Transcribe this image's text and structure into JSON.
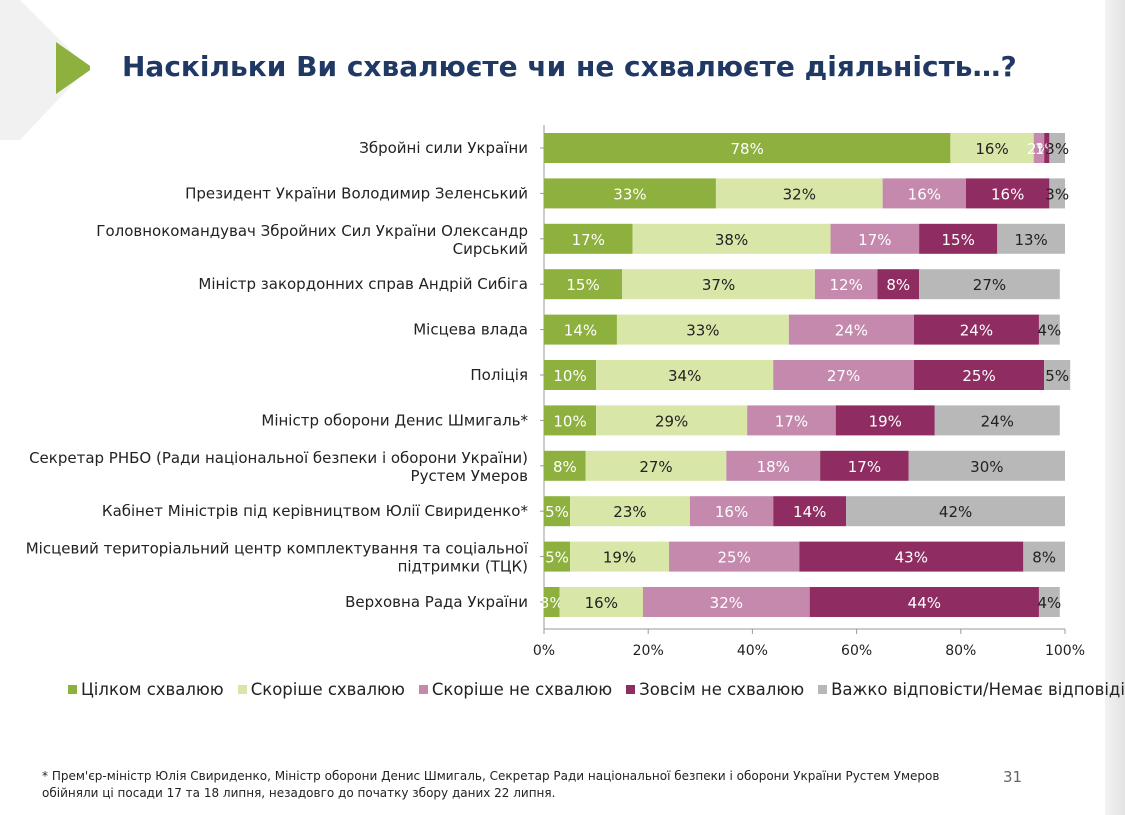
{
  "title": "Наскільки Ви схвалюєте чи не схвалюєте діяльність…?",
  "footnote": "* Прем'єр-міністр Юлія Свириденко, Міністр оборони Денис Шмигаль, Секретар Ради національної безпеки і оборони України Рустем Умеров обійняли ці посади 17 та 18 липня, незадовго до початку збору даних 22 липня.",
  "page_number": "31",
  "colors": {
    "accent_triangle": "#8db03e",
    "title": "#1f3864"
  },
  "chart_data": {
    "type": "bar",
    "orientation": "horizontal",
    "stacked": true,
    "xlim": [
      0,
      100
    ],
    "xticks": [
      "0%",
      "20%",
      "40%",
      "60%",
      "80%",
      "100%"
    ],
    "grid": false,
    "legend_position": "bottom",
    "categories": [
      [
        "Збройні сили України"
      ],
      [
        "Президент України Володимир Зеленський"
      ],
      [
        "Головнокомандувач Збройних Сил України Олександр",
        "Сирський"
      ],
      [
        "Міністр закордонних справ Андрій Сибіга"
      ],
      [
        "Місцева влада"
      ],
      [
        "Поліція"
      ],
      [
        "Міністр оборони Денис Шмигаль*"
      ],
      [
        "Секретар РНБО (Ради національної безпеки і оборони України)",
        "Рустем Умеров"
      ],
      [
        "Кабінет Міністрів під керівництвом Юлії Свириденко*"
      ],
      [
        "Місцевий територіальний центр комплектування та соціальної",
        "підтримки (ТЦК)"
      ],
      [
        "Верховна Рада України"
      ]
    ],
    "series": [
      {
        "name": "Цілком схвалюю",
        "color": "#8db03e",
        "label_color": "#ffffff",
        "values": [
          78,
          33,
          17,
          15,
          14,
          10,
          10,
          8,
          5,
          5,
          3
        ]
      },
      {
        "name": "Скоріше схвалюю",
        "color": "#d8e6a8",
        "label_color": "#222222",
        "values": [
          16,
          32,
          38,
          37,
          33,
          34,
          29,
          27,
          23,
          19,
          16
        ]
      },
      {
        "name": "Скоріше не схвалюю",
        "color": "#c489ad",
        "label_color": "#ffffff",
        "values": [
          2,
          16,
          17,
          12,
          24,
          27,
          17,
          18,
          16,
          25,
          32
        ]
      },
      {
        "name": "Зовсім не схвалюю",
        "color": "#8f2d62",
        "label_color": "#ffffff",
        "values": [
          1,
          16,
          15,
          8,
          24,
          25,
          19,
          17,
          14,
          43,
          44
        ]
      },
      {
        "name": "Важко відповісти/Немає відповіді",
        "color": "#b8b8b8",
        "label_color": "#222222",
        "values": [
          3,
          3,
          13,
          27,
          4,
          5,
          24,
          30,
          42,
          8,
          4
        ]
      }
    ]
  }
}
